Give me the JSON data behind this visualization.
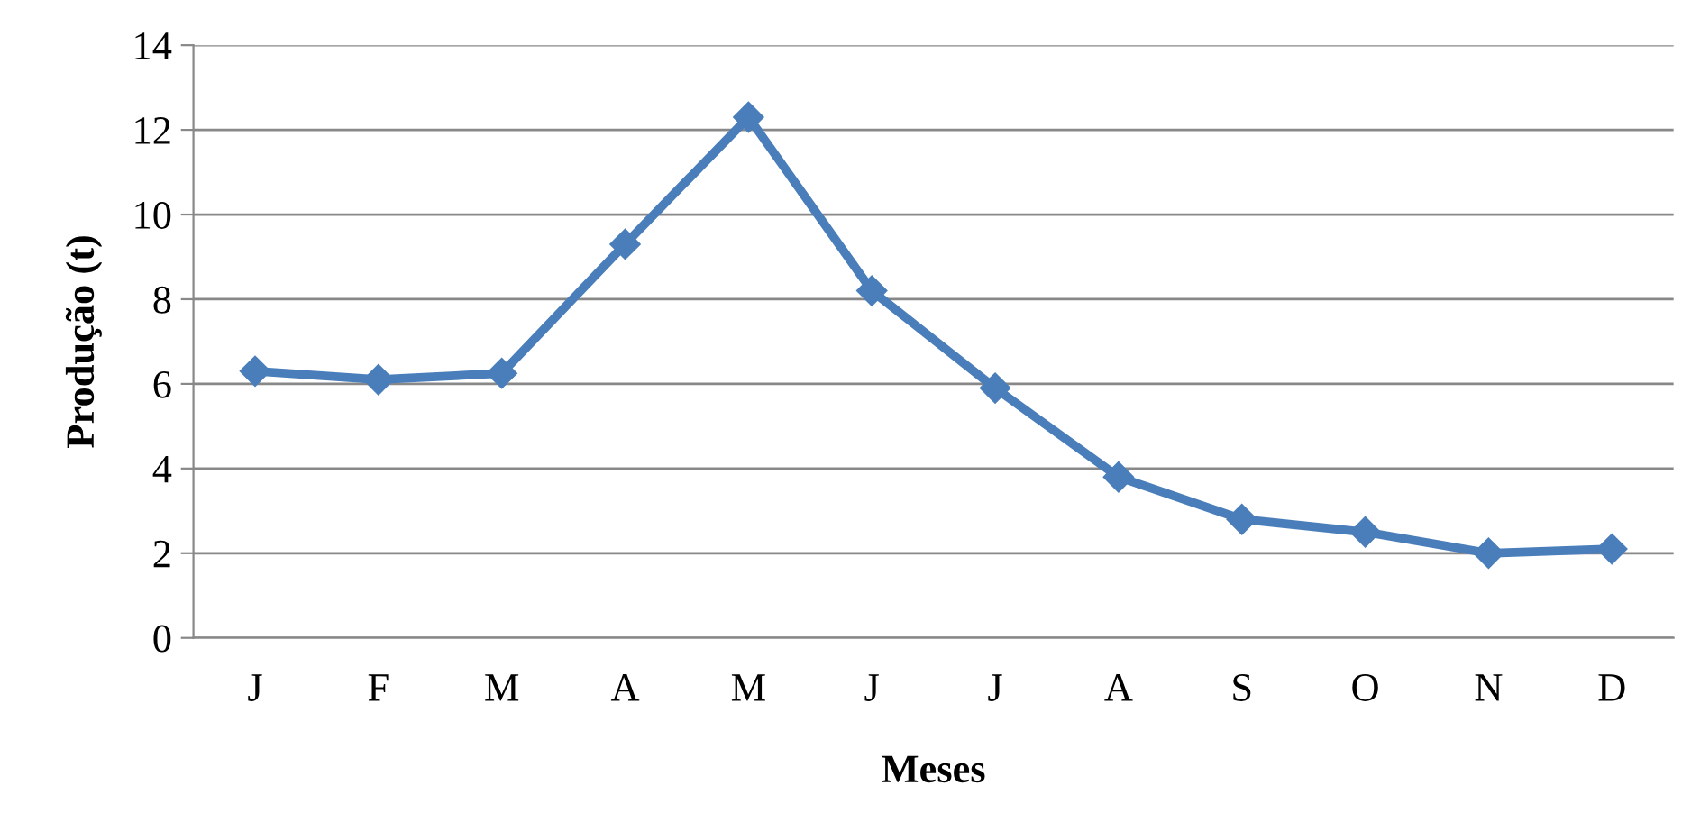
{
  "chart_data": {
    "type": "line",
    "xlabel": "Meses",
    "ylabel": "Produção (t)",
    "categories": [
      "J",
      "F",
      "M",
      "A",
      "M",
      "J",
      "J",
      "A",
      "S",
      "O",
      "N",
      "D"
    ],
    "series": [
      {
        "color": "#4a7ebb",
        "values": [
          6.3,
          6.1,
          6.25,
          9.3,
          12.3,
          8.2,
          5.9,
          3.8,
          2.8,
          2.5,
          2.0,
          2.1
        ]
      }
    ],
    "ylim": [
      0,
      14
    ],
    "yticks": [
      0,
      2,
      4,
      6,
      8,
      10,
      12,
      14
    ],
    "grid": "y",
    "marker": "diamond",
    "line_style": "solid",
    "legend": false
  }
}
